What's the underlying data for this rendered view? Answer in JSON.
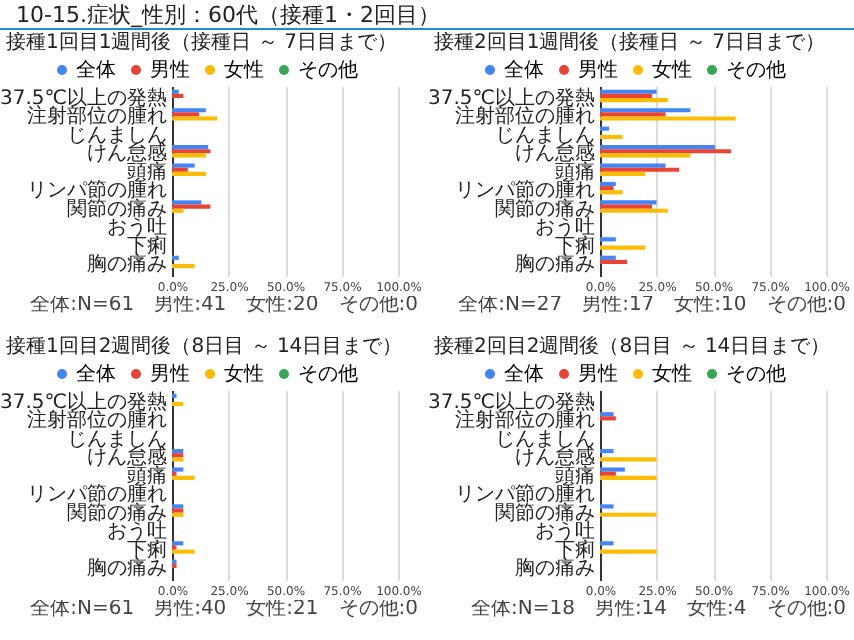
{
  "chart_data": [
    {
      "type": "other",
      "title": "10-15.症状_性別：60代（接種1・2回目）"
    },
    {
      "type": "bar",
      "orientation": "horizontal",
      "title": "接種1回目1週間後（接種日 ～ 7日目まで）",
      "categories": [
        "37.5℃以上の発熱",
        "注射部位の腫れ",
        "じんましん",
        "けん怠感",
        "頭痛",
        "リンパ節の腫れ",
        "関節の痛み",
        "おう吐",
        "下痢",
        "胸の痛み"
      ],
      "series": [
        {
          "name": "全体",
          "color": "#4285f4",
          "values": [
            3,
            15,
            0,
            16,
            10,
            0,
            13,
            0,
            0,
            3
          ]
        },
        {
          "name": "男性",
          "color": "#ea4335",
          "values": [
            5,
            12,
            0,
            17,
            7,
            0,
            17,
            0,
            0,
            0
          ]
        },
        {
          "name": "女性",
          "color": "#fbbc04",
          "values": [
            0,
            20,
            0,
            15,
            15,
            0,
            5,
            0,
            0,
            10
          ]
        },
        {
          "name": "その他",
          "color": "#34a853",
          "values": [
            0,
            0,
            0,
            0,
            0,
            0,
            0,
            0,
            0,
            0
          ]
        }
      ],
      "xlim": [
        0,
        100
      ],
      "xticks": [
        {
          "value": 0,
          "label": "0.0%"
        },
        {
          "value": 25,
          "label": "25.0%"
        },
        {
          "value": 50,
          "label": "50.0%"
        },
        {
          "value": 75,
          "label": "75.0%"
        },
        {
          "value": 100,
          "label": "100.0%"
        }
      ],
      "grid": "x",
      "legend": "top",
      "annotations": [
        "全体:N=61　男性:41　女性:20　その他:0"
      ]
    },
    {
      "type": "bar",
      "orientation": "horizontal",
      "title": "接種2回目1週間後（接種日 ～ 7日目まで）",
      "categories": [
        "37.5℃以上の発熱",
        "注射部位の腫れ",
        "じんましん",
        "けん怠感",
        "頭痛",
        "リンパ節の腫れ",
        "関節の痛み",
        "おう吐",
        "下痢",
        "胸の痛み"
      ],
      "series": [
        {
          "name": "全体",
          "color": "#4285f4",
          "values": [
            25,
            40,
            4,
            51,
            29,
            7,
            25,
            0,
            7,
            7
          ]
        },
        {
          "name": "男性",
          "color": "#ea4335",
          "values": [
            23,
            29,
            0,
            58,
            35,
            6,
            23,
            0,
            0,
            12
          ]
        },
        {
          "name": "女性",
          "color": "#fbbc04",
          "values": [
            30,
            60,
            10,
            40,
            20,
            10,
            30,
            0,
            20,
            0
          ]
        },
        {
          "name": "その他",
          "color": "#34a853",
          "values": [
            0,
            0,
            0,
            0,
            0,
            0,
            0,
            0,
            0,
            0
          ]
        }
      ],
      "xlim": [
        0,
        100
      ],
      "xticks": [
        {
          "value": 0,
          "label": "0.0%"
        },
        {
          "value": 25,
          "label": "25.0%"
        },
        {
          "value": 50,
          "label": "50.0%"
        },
        {
          "value": 75,
          "label": "75.0%"
        },
        {
          "value": 100,
          "label": "100.0%"
        }
      ],
      "grid": "x",
      "legend": "top",
      "annotations": [
        "全体:N=27　男性:17　女性:10　その他:0"
      ]
    },
    {
      "type": "bar",
      "orientation": "horizontal",
      "title": "接種1回目2週間後（8日目 ～ 14日目まで）",
      "categories": [
        "37.5℃以上の発熱",
        "注射部位の腫れ",
        "じんましん",
        "けん怠感",
        "頭痛",
        "リンパ節の腫れ",
        "関節の痛み",
        "おう吐",
        "下痢",
        "胸の痛み"
      ],
      "series": [
        {
          "name": "全体",
          "color": "#4285f4",
          "values": [
            2,
            0,
            0,
            5,
            5,
            0,
            5,
            0,
            5,
            2
          ]
        },
        {
          "name": "男性",
          "color": "#ea4335",
          "values": [
            0,
            0,
            0,
            5,
            2,
            0,
            5,
            0,
            2,
            2
          ]
        },
        {
          "name": "女性",
          "color": "#fbbc04",
          "values": [
            5,
            0,
            0,
            5,
            10,
            0,
            5,
            0,
            10,
            0
          ]
        },
        {
          "name": "その他",
          "color": "#34a853",
          "values": [
            0,
            0,
            0,
            0,
            0,
            0,
            0,
            0,
            0,
            0
          ]
        }
      ],
      "xlim": [
        0,
        100
      ],
      "xticks": [
        {
          "value": 0,
          "label": "0.0%"
        },
        {
          "value": 25,
          "label": "25.0%"
        },
        {
          "value": 50,
          "label": "50.0%"
        },
        {
          "value": 75,
          "label": "75.0%"
        },
        {
          "value": 100,
          "label": "100.0%"
        }
      ],
      "grid": "x",
      "legend": "top",
      "annotations": [
        "全体:N=61　男性:40　女性:21　その他:0"
      ]
    },
    {
      "type": "bar",
      "orientation": "horizontal",
      "title": "接種2回目2週間後（8日目 ～ 14日目まで）",
      "categories": [
        "37.5℃以上の発熱",
        "注射部位の腫れ",
        "じんましん",
        "けん怠感",
        "頭痛",
        "リンパ節の腫れ",
        "関節の痛み",
        "おう吐",
        "下痢",
        "胸の痛み"
      ],
      "series": [
        {
          "name": "全体",
          "color": "#4285f4",
          "values": [
            0,
            6,
            0,
            6,
            11,
            0,
            6,
            0,
            6,
            0
          ]
        },
        {
          "name": "男性",
          "color": "#ea4335",
          "values": [
            0,
            7,
            0,
            0,
            7,
            0,
            0,
            0,
            0,
            0
          ]
        },
        {
          "name": "女性",
          "color": "#fbbc04",
          "values": [
            0,
            0,
            0,
            25,
            25,
            0,
            25,
            0,
            25,
            0
          ]
        },
        {
          "name": "その他",
          "color": "#34a853",
          "values": [
            0,
            0,
            0,
            0,
            0,
            0,
            0,
            0,
            0,
            0
          ]
        }
      ],
      "xlim": [
        0,
        100
      ],
      "xticks": [
        {
          "value": 0,
          "label": "0.0%"
        },
        {
          "value": 25,
          "label": "25.0%"
        },
        {
          "value": 50,
          "label": "50.0%"
        },
        {
          "value": 75,
          "label": "75.0%"
        },
        {
          "value": 100,
          "label": "100.0%"
        }
      ],
      "grid": "x",
      "legend": "top",
      "annotations": [
        "全体:N=18　男性:14　女性:4　その他:0"
      ]
    }
  ]
}
